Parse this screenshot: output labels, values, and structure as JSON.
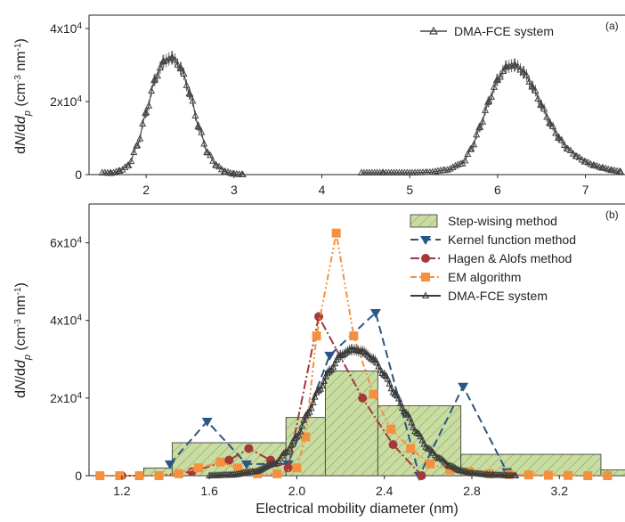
{
  "chart_data": [
    {
      "panel": "(a)",
      "type": "line",
      "xlim": [
        1.35,
        7.45
      ],
      "ylim": [
        0,
        40000
      ],
      "x_ticks": [
        "2",
        "3",
        "4",
        "5",
        "6",
        "7"
      ],
      "x_tick_values": [
        2,
        3,
        4,
        5,
        6,
        7
      ],
      "y_ticks": [
        "0",
        "2x10",
        "4x10"
      ],
      "y_tick_values": [
        0,
        20000,
        40000
      ],
      "y_tick_exponents": [
        "",
        "4",
        "4"
      ],
      "ylabel": "dN/dd_p (cm^-3 nm^-1)",
      "legend_position": "top-right",
      "series": [
        {
          "name": "DMA-FCE system",
          "color": "#444444",
          "marker": "triangle-open",
          "peaks": [
            {
              "x": [
                1.5,
                1.6,
                1.7,
                1.8,
                1.9,
                2.0,
                2.1,
                2.2,
                2.3,
                2.4,
                2.5,
                2.6,
                2.7,
                2.8,
                2.9,
                3.0,
                3.1
              ],
              "y": [
                500,
                400,
                1000,
                2500,
                8000,
                17000,
                26000,
                31000,
                32000,
                29000,
                22000,
                13000,
                6000,
                2500,
                800,
                200,
                0
              ]
            },
            {
              "x": [
                4.45,
                4.7,
                5.0,
                5.2,
                5.4,
                5.6,
                5.7,
                5.8,
                5.9,
                6.0,
                6.1,
                6.2,
                6.3,
                6.4,
                6.5,
                6.6,
                6.7,
                6.8,
                6.9,
                7.0,
                7.1,
                7.2,
                7.3,
                7.4
              ],
              "y": [
                500,
                500,
                500,
                600,
                1200,
                3000,
                7000,
                13000,
                20000,
                26000,
                29500,
                30000,
                28000,
                24000,
                19000,
                14000,
                10000,
                7000,
                5000,
                3500,
                2500,
                1800,
                1200,
                800
              ]
            }
          ]
        }
      ]
    },
    {
      "panel": "(b)",
      "type": "line",
      "xlim": [
        1.05,
        3.5
      ],
      "ylim": [
        0,
        70000
      ],
      "x_ticks": [
        "1.2",
        "1.6",
        "2.0",
        "2.4",
        "2.8",
        "3.2"
      ],
      "x_tick_values": [
        1.2,
        1.6,
        2.0,
        2.4,
        2.8,
        3.2
      ],
      "y_ticks": [
        "0",
        "2x10",
        "4x10",
        "6x10"
      ],
      "y_tick_values": [
        0,
        20000,
        40000,
        60000
      ],
      "y_tick_exponents": [
        "",
        "4",
        "4",
        "4"
      ],
      "xlabel": "Electrical mobility diameter (nm)",
      "ylabel": "dN/dd_p (cm^-3 nm^-1)",
      "legend_position": "top-right",
      "bars": {
        "name": "Step-wising method",
        "color": "#c9dca2",
        "edges": [
          1.3,
          1.43,
          1.95,
          2.13,
          2.37,
          2.75,
          3.39,
          3.52
        ],
        "values": [
          2000,
          8500,
          15000,
          27000,
          18000,
          5500,
          1500
        ]
      },
      "series": [
        {
          "name": "Kernel function method",
          "color": "#2a5586",
          "marker": "triangle-down",
          "dash": "9,5",
          "x": [
            1.42,
            1.59,
            1.77,
            1.96,
            2.15,
            2.36,
            2.56,
            2.76,
            2.96
          ],
          "y": [
            3000,
            14000,
            3000,
            3000,
            31000,
            42000,
            0,
            23000,
            1000
          ]
        },
        {
          "name": "Hagen & Alofs method",
          "color": "#a23a3a",
          "marker": "circle",
          "dash": "10,3,2,3",
          "x": [
            1.2,
            1.37,
            1.52,
            1.69,
            1.78,
            1.88,
            1.96,
            2.1,
            2.3,
            2.44,
            2.57
          ],
          "y": [
            0,
            0,
            1000,
            4000,
            7000,
            4000,
            2000,
            41000,
            20000,
            8000,
            0
          ]
        },
        {
          "name": "EM algorithm",
          "color": "#f5913e",
          "marker": "square",
          "dash": "7,3,2,3,2,3",
          "x": [
            1.1,
            1.19,
            1.28,
            1.37,
            1.46,
            1.55,
            1.65,
            1.73,
            1.82,
            1.91,
            2.0,
            2.04,
            2.09,
            2.18,
            2.26,
            2.35,
            2.43,
            2.52,
            2.61,
            2.7,
            2.79,
            2.88,
            2.97,
            3.06,
            3.15,
            3.24,
            3.33,
            3.42
          ],
          "y": [
            0,
            0,
            0,
            0,
            500,
            2000,
            3500,
            2000,
            500,
            500,
            2000,
            10000,
            36000,
            62500,
            36000,
            21000,
            12000,
            7000,
            3000,
            1500,
            1000,
            500,
            300,
            200,
            100,
            50,
            0,
            0
          ]
        },
        {
          "name": "DMA-FCE system",
          "color": "#3a3a3a",
          "marker": "triangle-open",
          "dash": "",
          "x": [
            1.6,
            1.7,
            1.8,
            1.9,
            1.95,
            2.0,
            2.05,
            2.1,
            2.15,
            2.2,
            2.25,
            2.3,
            2.35,
            2.4,
            2.45,
            2.5,
            2.55,
            2.6,
            2.65,
            2.7,
            2.75,
            2.8,
            2.9,
            3.0
          ],
          "y": [
            0,
            200,
            1000,
            3000,
            6000,
            10000,
            16000,
            22000,
            27000,
            31000,
            32500,
            32000,
            30000,
            26000,
            21000,
            16000,
            11000,
            7000,
            4500,
            2500,
            1300,
            600,
            150,
            0
          ]
        }
      ]
    }
  ]
}
